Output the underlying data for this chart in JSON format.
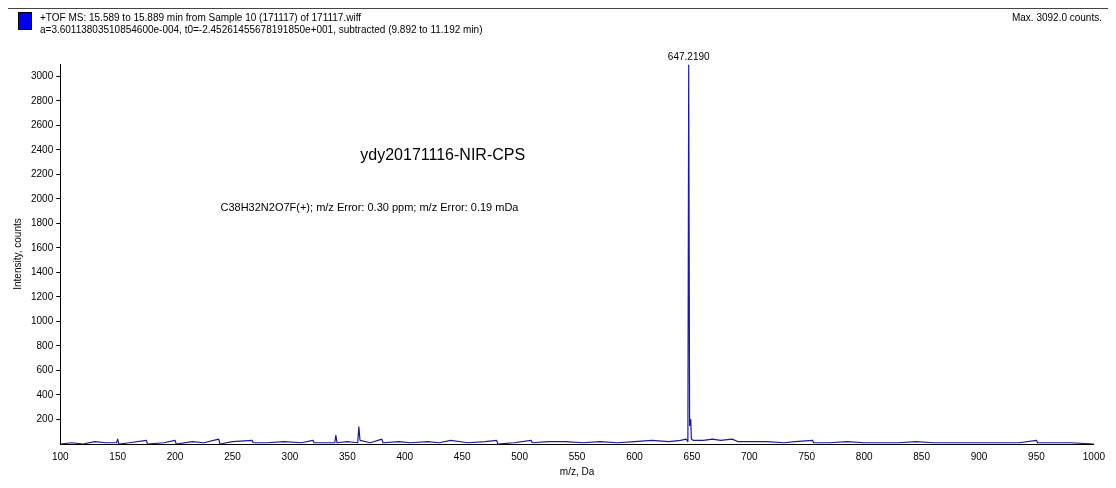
{
  "chart_data": {
    "type": "line",
    "title": "+TOF MS: 15.589 to 15.889 min from Sample 10 (171117) of 171117.wiff",
    "subtitle": "a=3.60113803510854600e-004, t0=-2.45261455678191850e+001, subtracted (9.892 to 11.192 min)",
    "xlabel": "m/z, Da",
    "ylabel": "Intensity, counts",
    "annotations": [
      "Max. 3092.0 counts.",
      {
        "text": "647.2190",
        "x": 647.219,
        "y": 3092
      },
      "ydy20171116-NIR-CPS",
      "C38H32N2O7F(+); m/z Error: 0.30 ppm; m/z Error: 0.19 mDa"
    ],
    "series": [
      {
        "color": "#1a1a9c",
        "x": [
          100,
          110,
          120,
          130,
          140,
          149,
          150,
          151,
          160,
          175,
          176,
          190,
          200,
          201,
          215,
          225,
          238,
          239,
          250,
          267,
          268,
          280,
          295,
          310,
          320,
          321,
          330,
          339,
          340,
          341,
          350,
          359,
          360,
          361,
          370,
          380,
          381,
          395,
          405,
          420,
          430,
          440,
          455,
          470,
          480,
          481,
          495,
          510,
          511,
          525,
          540,
          555,
          570,
          585,
          600,
          615,
          630,
          640,
          645,
          646.5,
          647.219,
          648,
          649,
          649.5,
          651,
          660,
          668,
          675,
          685,
          690,
          700,
          715,
          730,
          740,
          755,
          756,
          770,
          785,
          800,
          815,
          830,
          845,
          860,
          875,
          890,
          905,
          920,
          935,
          950,
          951,
          965,
          980,
          1000
        ],
        "values": [
          0,
          10,
          0,
          20,
          10,
          10,
          40,
          0,
          10,
          30,
          0,
          10,
          30,
          0,
          20,
          10,
          40,
          0,
          20,
          30,
          10,
          10,
          20,
          10,
          30,
          10,
          10,
          10,
          70,
          10,
          20,
          10,
          140,
          30,
          10,
          40,
          10,
          20,
          10,
          20,
          10,
          30,
          10,
          20,
          30,
          0,
          10,
          30,
          10,
          20,
          20,
          10,
          20,
          10,
          20,
          30,
          20,
          30,
          40,
          20,
          3092,
          150,
          200,
          40,
          30,
          30,
          40,
          30,
          40,
          20,
          20,
          20,
          10,
          20,
          30,
          10,
          10,
          20,
          10,
          10,
          10,
          20,
          10,
          10,
          10,
          10,
          10,
          10,
          30,
          10,
          10,
          10,
          0
        ]
      }
    ],
    "xlim": [
      100,
      1000
    ],
    "ylim": [
      0,
      3100
    ],
    "xticks": [
      100,
      150,
      200,
      250,
      300,
      350,
      400,
      450,
      500,
      550,
      600,
      650,
      700,
      750,
      800,
      850,
      900,
      950,
      1000
    ],
    "yticks": [
      200,
      400,
      600,
      800,
      1000,
      1200,
      1400,
      1600,
      1800,
      2000,
      2200,
      2400,
      2600,
      2800,
      3000
    ],
    "grid": false,
    "legend": false,
    "marker": "none",
    "line_style": "solid"
  }
}
